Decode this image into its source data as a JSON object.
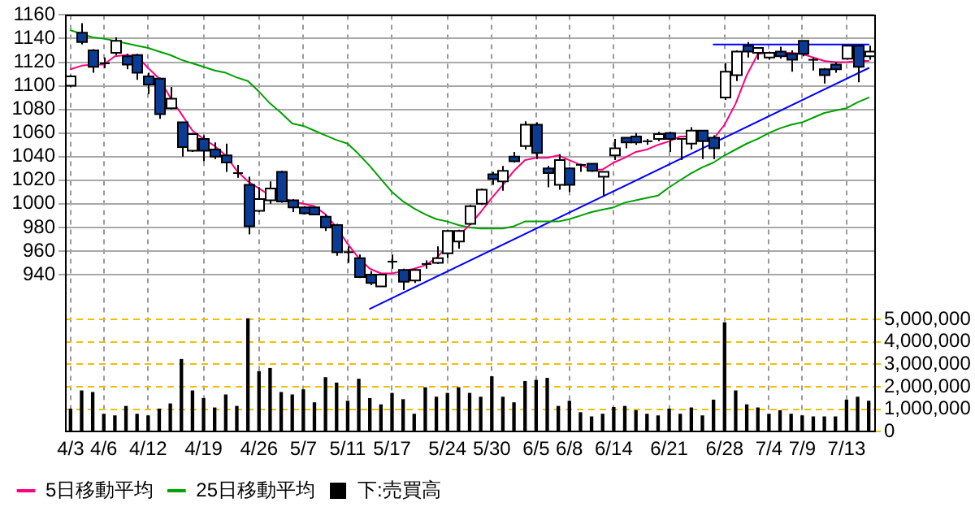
{
  "chart_data": {
    "type": "candlestick",
    "categories": [
      "4/3",
      null,
      null,
      "4/6",
      null,
      null,
      null,
      "4/12",
      null,
      null,
      null,
      null,
      "4/19",
      null,
      null,
      null,
      null,
      "4/26",
      null,
      null,
      null,
      "5/7",
      null,
      null,
      null,
      "5/11",
      null,
      null,
      null,
      "5/17",
      null,
      null,
      null,
      null,
      "5/24",
      null,
      null,
      null,
      "5/30",
      null,
      null,
      null,
      "6/5",
      null,
      null,
      "6/8",
      null,
      null,
      null,
      "6/14",
      null,
      null,
      null,
      null,
      "6/21",
      null,
      null,
      null,
      null,
      "6/28",
      null,
      null,
      null,
      "7/4",
      null,
      null,
      "7/9",
      null,
      null,
      null,
      "7/13",
      null,
      null
    ],
    "ohlc": [
      [
        1100,
        1109,
        1099,
        1108
      ],
      [
        1145,
        1153,
        1135,
        1137
      ],
      [
        1130,
        1131,
        1111,
        1116
      ],
      [
        1119,
        1124,
        1115,
        1119
      ],
      [
        1128,
        1141,
        1126,
        1138
      ],
      [
        1125,
        1127,
        1114,
        1118
      ],
      [
        1126,
        1127,
        1105,
        1111
      ],
      [
        1108,
        1111,
        1093,
        1101
      ],
      [
        1106,
        1107,
        1072,
        1076
      ],
      [
        1081,
        1099,
        1080,
        1089
      ],
      [
        1069,
        1069,
        1040,
        1048
      ],
      [
        1045,
        1060,
        1044,
        1059
      ],
      [
        1055,
        1058,
        1036,
        1045
      ],
      [
        1046,
        1052,
        1038,
        1040
      ],
      [
        1041,
        1051,
        1027,
        1035
      ],
      [
        1026,
        1033,
        1022,
        1026
      ],
      [
        1016,
        1023,
        974,
        981
      ],
      [
        994,
        1014,
        993,
        1004
      ],
      [
        1003,
        1019,
        1000,
        1013
      ],
      [
        1027,
        1028,
        1001,
        1002
      ],
      [
        1003,
        1004,
        993,
        997
      ],
      [
        997,
        998,
        991,
        992
      ],
      [
        997,
        997,
        991,
        991
      ],
      [
        989,
        991,
        977,
        980
      ],
      [
        982,
        983,
        956,
        959
      ],
      [
        959,
        964,
        950,
        959
      ],
      [
        954,
        957,
        937,
        938
      ],
      [
        940,
        943,
        931,
        933
      ],
      [
        930,
        940,
        930,
        940
      ],
      [
        951,
        957,
        945,
        951
      ],
      [
        944,
        945,
        927,
        934
      ],
      [
        935,
        945,
        933,
        944
      ],
      [
        949,
        952,
        945,
        949
      ],
      [
        950,
        964,
        949,
        954
      ],
      [
        958,
        978,
        954,
        977
      ],
      [
        968,
        978,
        962,
        977
      ],
      [
        983,
        999,
        982,
        998
      ],
      [
        1000,
        1013,
        999,
        1012
      ],
      [
        1025,
        1027,
        1016,
        1021
      ],
      [
        1019,
        1032,
        1011,
        1028
      ],
      [
        1040,
        1044,
        1035,
        1036
      ],
      [
        1049,
        1070,
        1046,
        1067
      ],
      [
        1067,
        1069,
        1038,
        1043
      ],
      [
        1030,
        1032,
        1014,
        1026
      ],
      [
        1016,
        1042,
        1012,
        1037
      ],
      [
        1030,
        1031,
        1010,
        1016
      ],
      [
        1033,
        1034,
        1027,
        1033
      ],
      [
        1034,
        1034,
        1027,
        1028
      ],
      [
        1023,
        1027,
        1007,
        1027
      ],
      [
        1041,
        1055,
        1037,
        1047
      ],
      [
        1056,
        1056,
        1047,
        1052
      ],
      [
        1057,
        1060,
        1050,
        1052
      ],
      [
        1053,
        1055,
        1050,
        1053
      ],
      [
        1055,
        1061,
        1053,
        1059
      ],
      [
        1060,
        1061,
        1044,
        1055
      ],
      [
        1055,
        1055,
        1037,
        1055
      ],
      [
        1051,
        1065,
        1046,
        1062
      ],
      [
        1062,
        1062,
        1038,
        1053
      ],
      [
        1056,
        1058,
        1038,
        1047
      ],
      [
        1090,
        1119,
        1088,
        1112
      ],
      [
        1109,
        1130,
        1104,
        1129
      ],
      [
        1134,
        1137,
        1124,
        1129
      ],
      [
        1128,
        1132,
        1122,
        1132
      ],
      [
        1124,
        1129,
        1122,
        1128
      ],
      [
        1129,
        1133,
        1123,
        1125
      ],
      [
        1127,
        1130,
        1112,
        1122
      ],
      [
        1138,
        1138,
        1125,
        1127
      ],
      [
        1122,
        1124,
        1113,
        1122
      ],
      [
        1114,
        1115,
        1102,
        1109
      ],
      [
        1118,
        1120,
        1111,
        1114
      ],
      [
        1123,
        1135,
        1122,
        1134
      ],
      [
        1134,
        1135,
        1103,
        1116
      ],
      [
        1125,
        1134,
        1122,
        1129
      ]
    ],
    "series": [
      {
        "name": "5日移動平均",
        "type": "line",
        "color": "#ff0080",
        "values": [
          1114,
          1117,
          1118,
          1118,
          1125,
          1126,
          1125,
          1115,
          1106,
          1090,
          1076,
          1062,
          1055,
          1049,
          1041,
          1028,
          1019,
          1013,
          1007,
          null,
          null,
          1000,
          998,
          991,
          980,
          966,
          954,
          945,
          941,
          941,
          943,
          945,
          948,
          954,
          964,
          null,
          982,
          993,
          1005,
          1016,
          1028,
          1037,
          1039,
          1039,
          1041,
          1037,
          1033,
          1029,
          1029,
          1035,
          1039,
          1044,
          1046,
          1050,
          1053,
          1057,
          1057,
          null,
          1055,
          1067,
          1085,
          1109,
          1127,
          1128,
          null,
          1128,
          1127,
          1124,
          1121,
          1120,
          1120,
          1121,
          1121
        ]
      },
      {
        "name": "25日移動平均",
        "type": "line",
        "color": "#00a000",
        "values": [
          1147,
          1144,
          1141,
          1140,
          1138,
          1136,
          1134,
          1132,
          1129,
          1126,
          1122,
          1119,
          1116,
          1113,
          1111,
          1107,
          1104,
          1095,
          1085,
          1077,
          1068,
          1066,
          1062,
          1058,
          1054,
          1051,
          1042,
          1032,
          1021,
          1010,
          1002,
          996,
          991,
          987,
          985,
          982,
          980,
          979,
          979,
          979,
          981,
          985,
          985,
          985,
          985,
          987,
          990,
          993,
          995,
          997,
          1001,
          1003,
          1005,
          1007,
          1014,
          1020,
          1026,
          1031,
          1035,
          1041,
          1046,
          1051,
          1055,
          1060,
          1064,
          1067,
          1069,
          1073,
          1077,
          1079,
          1081,
          1086,
          1090
        ]
      },
      {
        "type": "line",
        "color": "#0000ff",
        "values": [
          null,
          null,
          null,
          null,
          null,
          null,
          null,
          null,
          null,
          null,
          null,
          null,
          null,
          null,
          null,
          null,
          null,
          null,
          null,
          null,
          null,
          null,
          null,
          null,
          null,
          null,
          null,
          911,
          null,
          null,
          null,
          null,
          null,
          null,
          null,
          null,
          null,
          null,
          null,
          null,
          null,
          null,
          null,
          null,
          null,
          null,
          null,
          null,
          null,
          null,
          null,
          null,
          null,
          null,
          null,
          null,
          null,
          null,
          null,
          null,
          null,
          null,
          null,
          null,
          null,
          null,
          null,
          null,
          null,
          null,
          null,
          null,
          1115
        ]
      },
      {
        "type": "line",
        "color": "#0000ff",
        "values": [
          null,
          null,
          null,
          null,
          null,
          null,
          null,
          null,
          null,
          null,
          null,
          null,
          null,
          null,
          null,
          null,
          null,
          null,
          null,
          null,
          null,
          null,
          null,
          null,
          null,
          null,
          null,
          null,
          null,
          null,
          null,
          null,
          null,
          null,
          null,
          null,
          null,
          null,
          null,
          null,
          null,
          null,
          null,
          null,
          null,
          null,
          null,
          null,
          null,
          null,
          null,
          null,
          null,
          null,
          null,
          null,
          null,
          null,
          1135,
          null,
          null,
          null,
          null,
          null,
          null,
          null,
          null,
          null,
          null,
          null,
          null,
          null,
          1135
        ]
      },
      {
        "name": "下:売買高",
        "type": "bar",
        "axis": "y2",
        "color": "#000000",
        "values": [
          1000000,
          1810000,
          1740000,
          770000,
          700000,
          1120000,
          770000,
          700000,
          1000000,
          1230000,
          3210000,
          1810000,
          1470000,
          1050000,
          1630000,
          1120000,
          5020000,
          2670000,
          2810000,
          1740000,
          1630000,
          1860000,
          1280000,
          2400000,
          2160000,
          1350000,
          2330000,
          1470000,
          1190000,
          1700000,
          1420000,
          770000,
          1950000,
          1530000,
          1700000,
          1950000,
          1700000,
          1530000,
          2440000,
          1530000,
          1280000,
          2230000,
          2280000,
          2370000,
          1120000,
          1350000,
          840000,
          650000,
          770000,
          1070000,
          1120000,
          930000,
          770000,
          700000,
          1000000,
          770000,
          1050000,
          700000,
          1400000,
          4840000,
          1810000,
          1190000,
          1050000,
          770000,
          930000,
          770000,
          700000,
          650000,
          650000,
          650000,
          1400000,
          1530000,
          1350000
        ]
      }
    ],
    "ylim": [
      807,
      1160
    ],
    "yticks": [
      940,
      960,
      980,
      1000,
      1020,
      1040,
      1060,
      1080,
      1100,
      1120,
      1140,
      1160
    ],
    "y2lim": [
      0,
      18560000
    ],
    "y2ticks": [
      0,
      {
        "value": 1000000,
        "label": "1,000,000"
      },
      {
        "value": 2000000,
        "label": "2,000,000"
      },
      {
        "value": 3000000,
        "label": "3,000,000"
      },
      {
        "value": 4000000,
        "label": "4,000,000"
      },
      {
        "value": 5000000,
        "label": "5,000,000"
      }
    ],
    "grid": true,
    "legend": "bottom left",
    "marker": "none"
  }
}
